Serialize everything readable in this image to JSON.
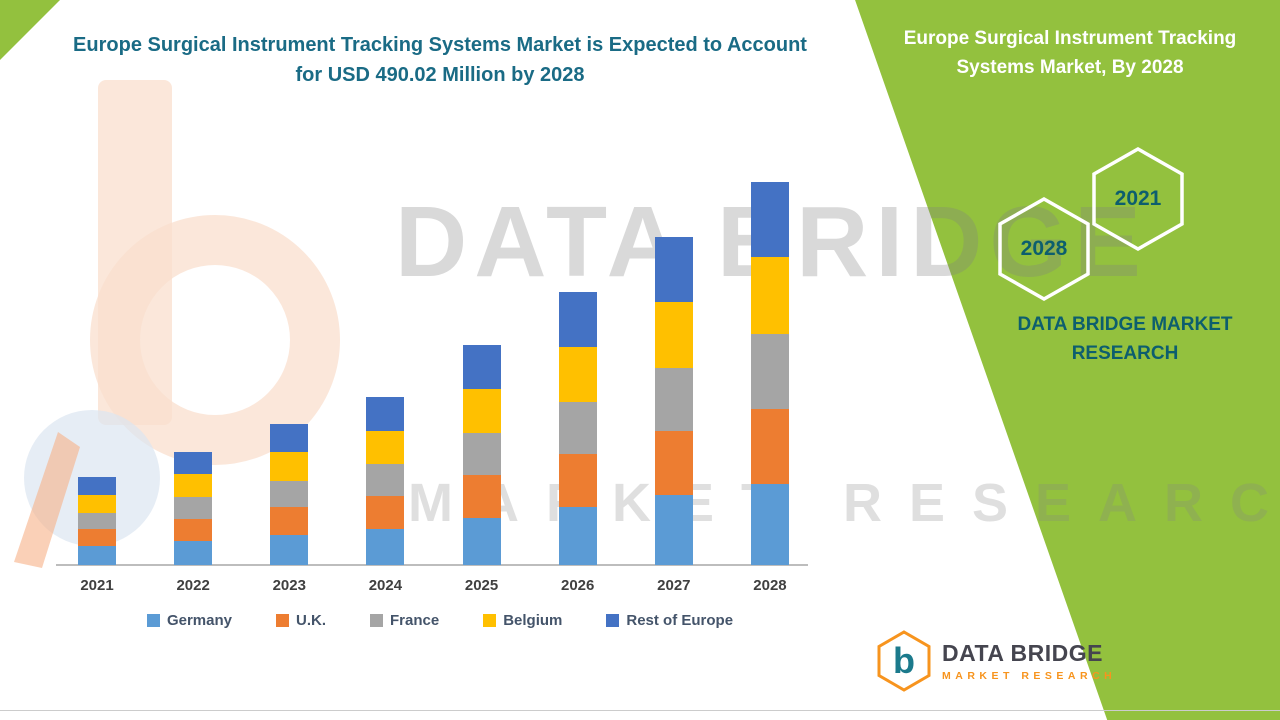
{
  "colors": {
    "green_bg": "#93C13E",
    "title_text": "#1A6B85",
    "panel_title_text": "#FFFFFF",
    "panel_accent_text": "#0D5E6E",
    "orange_brand": "#F7941E",
    "logo_teal": "#1B7A8C",
    "axis_text": "#404040",
    "legend_text": "#44546A"
  },
  "right_panel": {
    "title": "Europe Surgical Instrument Tracking Systems Market, By 2028",
    "hexagons": [
      {
        "year": "2028"
      },
      {
        "year": "2021"
      }
    ],
    "brand_text": "DATA BRIDGE MARKET RESEARCH"
  },
  "watermark": {
    "line1": "DATA BRIDGE",
    "line2": "MARKET RESEARCH"
  },
  "footer_logo": {
    "name": "DATA BRIDGE",
    "tagline": "MARKET RESEARCH",
    "letter": "b"
  },
  "chart_data": {
    "type": "bar",
    "stacked": true,
    "title": "Europe Surgical Instrument Tracking Systems Market is Expected to Account for USD 490.02 Million by 2028",
    "unit": "USD Million",
    "xlabel": "",
    "ylabel": "",
    "grid": false,
    "y_axis_visible": false,
    "legend_position": "bottom",
    "ylim": [
      0,
      500
    ],
    "highlight_total_2028": 490.02,
    "categories": [
      "2021",
      "2022",
      "2023",
      "2024",
      "2025",
      "2026",
      "2027",
      "2028"
    ],
    "series": [
      {
        "name": "Germany",
        "color": "#5B9BD5",
        "values": [
          24,
          31,
          39,
          46,
          60,
          74,
          89,
          103.6
        ]
      },
      {
        "name": "U.K.",
        "color": "#ED7D31",
        "values": [
          22,
          28,
          35,
          42,
          55,
          68,
          82,
          96.4
        ]
      },
      {
        "name": "France",
        "color": "#A5A5A5",
        "values": [
          21,
          28,
          34,
          41,
          54,
          67,
          81,
          95.5
        ]
      },
      {
        "name": "Belgium",
        "color": "#FFC000",
        "values": [
          23,
          29,
          36,
          43,
          56,
          70,
          84,
          98.5
        ]
      },
      {
        "name": "Rest of Europe",
        "color": "#4472C4",
        "values": [
          22,
          29,
          36,
          43,
          56,
          70,
          84,
          96.02
        ]
      }
    ],
    "totals": [
      112,
      145,
      180,
      215,
      281,
      349,
      420,
      490.02
    ]
  }
}
